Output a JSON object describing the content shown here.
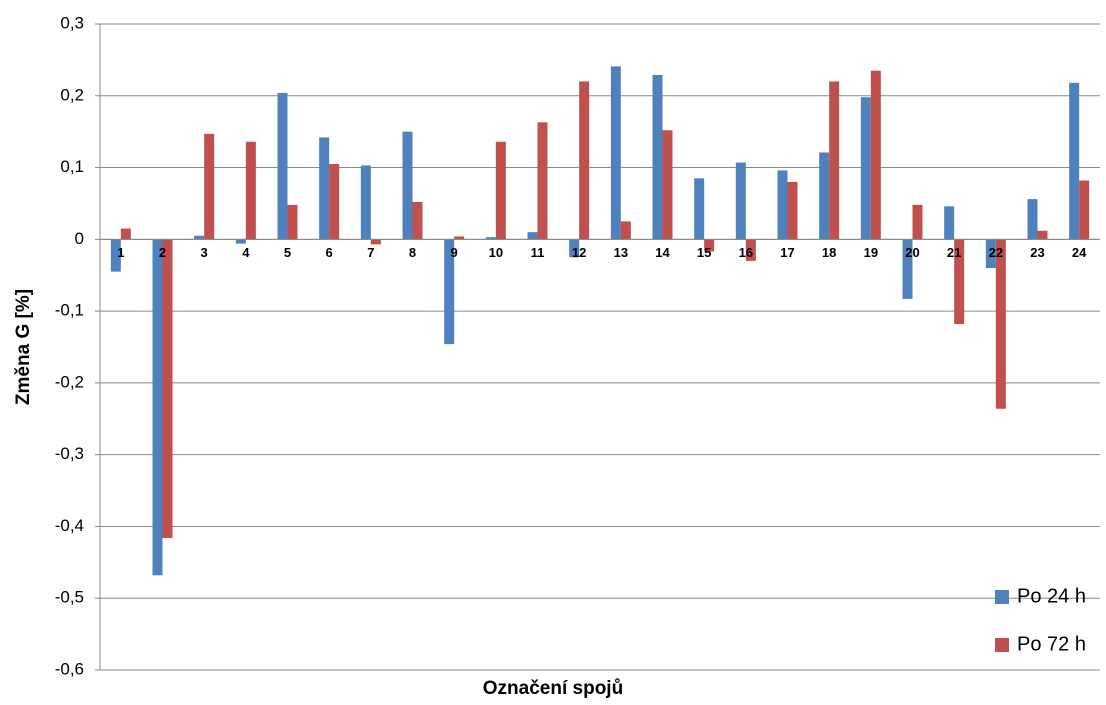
{
  "chart_data": {
    "type": "bar",
    "x_label": "Označení spojů",
    "y_label": "Změna G [%]",
    "categories": [
      "1",
      "2",
      "3",
      "4",
      "5",
      "6",
      "7",
      "8",
      "9",
      "10",
      "11",
      "12",
      "13",
      "14",
      "15",
      "16",
      "17",
      "18",
      "19",
      "20",
      "21",
      "22",
      "23",
      "24"
    ],
    "series": [
      {
        "name": "Po 24 h",
        "color": "#4f81bd",
        "values": [
          -0.045,
          -0.468,
          0.005,
          -0.006,
          0.204,
          0.142,
          0.103,
          0.15,
          -0.146,
          0.003,
          0.01,
          -0.025,
          0.241,
          0.229,
          0.085,
          0.107,
          0.096,
          0.121,
          0.198,
          -0.083,
          0.046,
          -0.04,
          0.056,
          0.218
        ]
      },
      {
        "name": "Po 72 h",
        "color": "#c0504d",
        "values": [
          0.015,
          -0.416,
          0.147,
          0.136,
          0.048,
          0.105,
          -0.007,
          0.052,
          0.004,
          0.136,
          0.163,
          0.22,
          0.025,
          0.152,
          -0.017,
          -0.03,
          0.08,
          0.22,
          0.235,
          0.048,
          -0.118,
          -0.236,
          0.012,
          0.082
        ]
      }
    ],
    "ylim": [
      -0.6,
      0.3
    ],
    "yticks": [
      {
        "value": -0.6,
        "label": "-0,6"
      },
      {
        "value": -0.5,
        "label": "-0,5"
      },
      {
        "value": -0.4,
        "label": "-0,4"
      },
      {
        "value": -0.3,
        "label": "-0,3"
      },
      {
        "value": -0.2,
        "label": "-0,2"
      },
      {
        "value": -0.1,
        "label": "-0,1"
      },
      0,
      {
        "value": 0.1,
        "label": "0,1"
      },
      {
        "value": 0.2,
        "label": "0,2"
      },
      {
        "value": 0.3,
        "label": "0,3"
      }
    ],
    "grid": true,
    "legend": "bottom-right"
  }
}
